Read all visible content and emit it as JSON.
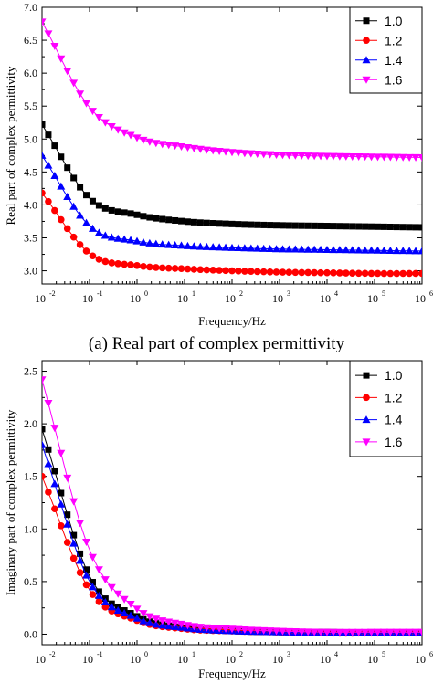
{
  "chart_data": [
    {
      "type": "line",
      "caption": "(a) Real part of complex permittivity",
      "xlabel": "Frequency/Hz",
      "ylabel": "Real part of complex permittivity",
      "xscale": "log",
      "xlim": [
        0.01,
        1000000
      ],
      "ylim": [
        2.8,
        7.0
      ],
      "xticks": [
        {
          "base": "10",
          "exp": "-2"
        },
        {
          "base": "10",
          "exp": "-1"
        },
        {
          "base": "10",
          "exp": "0"
        },
        {
          "base": "10",
          "exp": "1"
        },
        {
          "base": "10",
          "exp": "2"
        },
        {
          "base": "10",
          "exp": "3"
        },
        {
          "base": "10",
          "exp": "4"
        },
        {
          "base": "10",
          "exp": "5"
        },
        {
          "base": "10",
          "exp": "6"
        }
      ],
      "yticks": [
        "3.0",
        "3.5",
        "4.0",
        "4.5",
        "5.0",
        "5.5",
        "6.0",
        "6.5",
        "7.0"
      ],
      "legend": "top-right",
      "grid": false,
      "series": [
        {
          "name": "1.0",
          "color": "#000000",
          "marker": "square",
          "x": [
            0.01,
            0.1,
            1,
            10,
            100,
            1000,
            10000,
            100000,
            1000000
          ],
          "y": [
            5.22,
            4.1,
            3.85,
            3.75,
            3.71,
            3.69,
            3.68,
            3.67,
            3.66
          ]
        },
        {
          "name": "1.2",
          "color": "#ff0000",
          "marker": "circle",
          "x": [
            0.01,
            0.1,
            1,
            10,
            100,
            1000,
            10000,
            100000,
            1000000
          ],
          "y": [
            4.18,
            3.26,
            3.08,
            3.03,
            3.0,
            2.98,
            2.97,
            2.96,
            2.96
          ]
        },
        {
          "name": "1.4",
          "color": "#0000ff",
          "marker": "triangle-up",
          "x": [
            0.01,
            0.1,
            1,
            10,
            100,
            1000,
            10000,
            100000,
            1000000
          ],
          "y": [
            4.75,
            3.68,
            3.45,
            3.38,
            3.35,
            3.33,
            3.32,
            3.31,
            3.3
          ]
        },
        {
          "name": "1.6",
          "color": "#ff00ff",
          "marker": "triangle-down",
          "x": [
            0.01,
            0.1,
            1,
            10,
            100,
            1000,
            10000,
            100000,
            1000000
          ],
          "y": [
            6.78,
            5.48,
            5.02,
            4.88,
            4.8,
            4.76,
            4.74,
            4.73,
            4.72
          ]
        }
      ]
    },
    {
      "type": "line",
      "xlabel": "Frequency/Hz",
      "ylabel": "Imaginary part of complex permittivity",
      "xscale": "log",
      "xlim": [
        0.01,
        1000000
      ],
      "ylim": [
        -0.1,
        2.6
      ],
      "xticks": [
        {
          "base": "10",
          "exp": "-2"
        },
        {
          "base": "10",
          "exp": "-1"
        },
        {
          "base": "10",
          "exp": "0"
        },
        {
          "base": "10",
          "exp": "1"
        },
        {
          "base": "10",
          "exp": "2"
        },
        {
          "base": "10",
          "exp": "3"
        },
        {
          "base": "10",
          "exp": "4"
        },
        {
          "base": "10",
          "exp": "5"
        },
        {
          "base": "10",
          "exp": "6"
        }
      ],
      "yticks": [
        "0.0",
        "0.5",
        "1.0",
        "1.5",
        "2.0",
        "2.5"
      ],
      "legend": "top-right",
      "grid": false,
      "series": [
        {
          "name": "1.0",
          "color": "#000000",
          "marker": "square",
          "x": [
            0.01,
            0.1,
            1,
            10,
            100,
            1000,
            10000,
            100000,
            1000000
          ],
          "y": [
            1.95,
            0.55,
            0.17,
            0.06,
            0.03,
            0.02,
            0.02,
            0.01,
            0.01
          ]
        },
        {
          "name": "1.2",
          "color": "#ff0000",
          "marker": "circle",
          "x": [
            0.01,
            0.1,
            1,
            10,
            100,
            1000,
            10000,
            100000,
            1000000
          ],
          "y": [
            1.5,
            0.42,
            0.13,
            0.05,
            0.03,
            0.02,
            0.01,
            0.01,
            0.01
          ]
        },
        {
          "name": "1.4",
          "color": "#0000ff",
          "marker": "triangle-up",
          "x": [
            0.01,
            0.1,
            1,
            10,
            100,
            1000,
            10000,
            100000,
            1000000
          ],
          "y": [
            1.8,
            0.5,
            0.15,
            0.06,
            0.03,
            0.02,
            0.01,
            0.01,
            0.01
          ]
        },
        {
          "name": "1.6",
          "color": "#ff00ff",
          "marker": "triangle-down",
          "x": [
            0.01,
            0.1,
            1,
            10,
            100,
            1000,
            10000,
            100000,
            1000000
          ],
          "y": [
            2.42,
            0.8,
            0.24,
            0.09,
            0.05,
            0.03,
            0.02,
            0.02,
            0.02
          ]
        }
      ]
    }
  ]
}
